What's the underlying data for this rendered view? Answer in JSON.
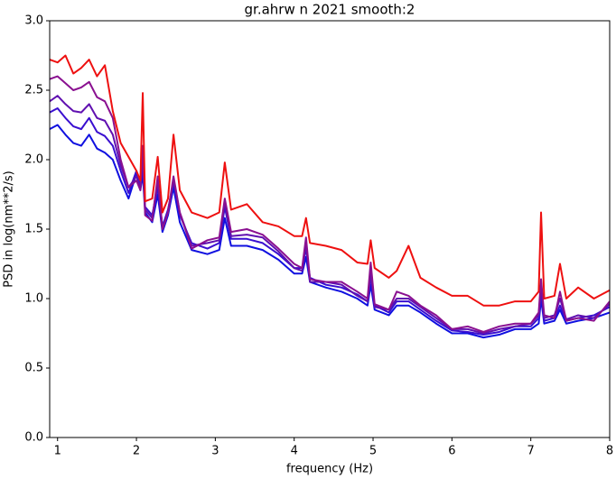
{
  "chart_data": {
    "type": "line",
    "title": "gr.ahrw n 2021 smooth:2",
    "x_label": "frequency (Hz)",
    "y_label": "PSD in log(nm**2/s)",
    "xlim": [
      0.9,
      8
    ],
    "ylim": [
      0,
      3
    ],
    "xticks": [
      1,
      2,
      3,
      4,
      5,
      6,
      7,
      8
    ],
    "yticks": [
      {
        "value": 0,
        "label": "0.0"
      },
      {
        "value": 0.5,
        "label": "0.5"
      },
      {
        "value": 1,
        "label": "1.0"
      },
      {
        "value": 1.5,
        "label": "1.5"
      },
      {
        "value": 2,
        "label": "2.0"
      },
      {
        "value": 2.5,
        "label": "2.5"
      },
      {
        "value": 3,
        "label": "3.0"
      }
    ],
    "grid": false,
    "x": [
      0.9,
      1.0,
      1.1,
      1.2,
      1.3,
      1.4,
      1.5,
      1.6,
      1.7,
      1.8,
      1.9,
      2.0,
      2.05,
      2.08,
      2.11,
      2.2,
      2.27,
      2.33,
      2.4,
      2.47,
      2.55,
      2.7,
      2.9,
      3.05,
      3.12,
      3.2,
      3.4,
      3.6,
      3.8,
      4.0,
      4.1,
      4.15,
      4.2,
      4.4,
      4.6,
      4.8,
      4.93,
      4.97,
      5.02,
      5.2,
      5.3,
      5.45,
      5.6,
      5.8,
      6.0,
      6.2,
      6.4,
      6.6,
      6.8,
      7.0,
      7.1,
      7.13,
      7.17,
      7.3,
      7.37,
      7.45,
      7.6,
      7.8,
      8.0
    ],
    "series": [
      {
        "color": "#1010e0",
        "values": [
          2.22,
          2.25,
          2.18,
          2.12,
          2.1,
          2.18,
          2.08,
          2.05,
          2.0,
          1.85,
          1.72,
          1.9,
          1.78,
          1.9,
          1.62,
          1.55,
          1.75,
          1.48,
          1.6,
          1.8,
          1.55,
          1.35,
          1.32,
          1.35,
          1.58,
          1.38,
          1.38,
          1.35,
          1.28,
          1.18,
          1.18,
          1.3,
          1.12,
          1.08,
          1.05,
          1.0,
          0.95,
          1.1,
          0.92,
          0.88,
          0.95,
          0.95,
          0.9,
          0.82,
          0.75,
          0.75,
          0.72,
          0.74,
          0.78,
          0.78,
          0.82,
          1.0,
          0.82,
          0.84,
          0.92,
          0.82,
          0.84,
          0.86,
          0.9
        ]
      },
      {
        "color": "#3a0fd0",
        "values": [
          2.34,
          2.37,
          2.3,
          2.24,
          2.22,
          2.3,
          2.2,
          2.17,
          2.1,
          1.92,
          1.76,
          1.92,
          1.82,
          1.96,
          1.66,
          1.6,
          1.8,
          1.52,
          1.64,
          1.84,
          1.6,
          1.4,
          1.36,
          1.4,
          1.66,
          1.43,
          1.43,
          1.4,
          1.32,
          1.22,
          1.22,
          1.36,
          1.15,
          1.1,
          1.08,
          1.03,
          0.98,
          1.16,
          0.95,
          0.9,
          0.98,
          0.98,
          0.92,
          0.84,
          0.77,
          0.76,
          0.74,
          0.76,
          0.8,
          0.8,
          0.86,
          1.06,
          0.84,
          0.86,
          0.95,
          0.84,
          0.86,
          0.88,
          0.94
        ]
      },
      {
        "color": "#6010b0",
        "values": [
          2.42,
          2.46,
          2.4,
          2.35,
          2.34,
          2.4,
          2.3,
          2.28,
          2.18,
          1.96,
          1.8,
          1.88,
          1.8,
          2.05,
          1.64,
          1.58,
          1.85,
          1.5,
          1.62,
          1.86,
          1.62,
          1.38,
          1.4,
          1.42,
          1.7,
          1.45,
          1.46,
          1.44,
          1.34,
          1.22,
          1.2,
          1.4,
          1.12,
          1.12,
          1.1,
          1.02,
          0.98,
          1.2,
          0.94,
          0.92,
          1.0,
          1.0,
          0.94,
          0.86,
          0.78,
          0.78,
          0.75,
          0.78,
          0.8,
          0.82,
          0.88,
          1.1,
          0.86,
          0.88,
          1.0,
          0.85,
          0.88,
          0.86,
          0.96
        ]
      },
      {
        "color": "#8a1090",
        "values": [
          2.58,
          2.6,
          2.55,
          2.5,
          2.52,
          2.56,
          2.45,
          2.42,
          2.3,
          2.0,
          1.8,
          1.85,
          1.78,
          2.1,
          1.6,
          1.56,
          1.88,
          1.5,
          1.62,
          1.88,
          1.62,
          1.36,
          1.42,
          1.44,
          1.72,
          1.48,
          1.5,
          1.46,
          1.36,
          1.25,
          1.22,
          1.44,
          1.14,
          1.12,
          1.12,
          1.05,
          1.0,
          1.26,
          0.96,
          0.92,
          1.05,
          1.02,
          0.95,
          0.88,
          0.78,
          0.8,
          0.76,
          0.8,
          0.82,
          0.82,
          0.9,
          1.14,
          0.88,
          0.86,
          1.05,
          0.84,
          0.86,
          0.84,
          0.98
        ]
      },
      {
        "color": "#ee1010",
        "values": [
          2.72,
          2.7,
          2.75,
          2.62,
          2.66,
          2.72,
          2.6,
          2.68,
          2.35,
          2.12,
          2.02,
          1.92,
          1.85,
          2.48,
          1.7,
          1.72,
          2.02,
          1.62,
          1.72,
          2.18,
          1.78,
          1.62,
          1.58,
          1.62,
          1.98,
          1.64,
          1.68,
          1.55,
          1.52,
          1.45,
          1.45,
          1.58,
          1.4,
          1.38,
          1.35,
          1.26,
          1.25,
          1.42,
          1.22,
          1.15,
          1.2,
          1.38,
          1.15,
          1.08,
          1.02,
          1.02,
          0.95,
          0.95,
          0.98,
          0.98,
          1.05,
          1.62,
          1.0,
          1.02,
          1.25,
          1.0,
          1.08,
          1.0,
          1.06
        ]
      }
    ]
  }
}
